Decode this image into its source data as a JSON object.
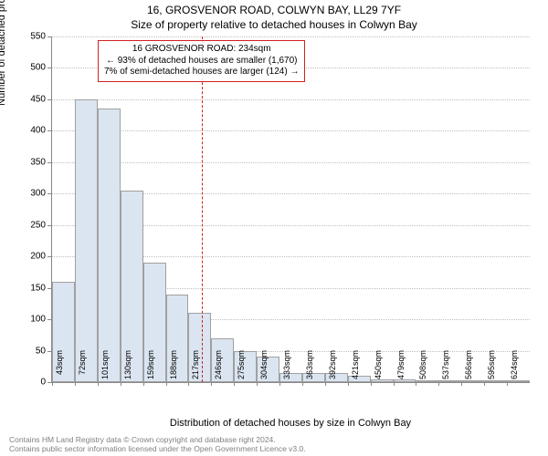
{
  "supertitle": "16, GROSVENOR ROAD, COLWYN BAY, LL29 7YF",
  "title": "Size of property relative to detached houses in Colwyn Bay",
  "chart": {
    "type": "histogram",
    "ylabel": "Number of detached properties",
    "xlabel": "Distribution of detached houses by size in Colwyn Bay",
    "ylim": [
      0,
      550
    ],
    "ytick_step": 50,
    "bar_color": "#dbe5f1",
    "bar_border_color": "#a0a0a0",
    "grid_color": "#bfbfbf",
    "background_color": "#ffffff",
    "bin_width_sqm": 29,
    "x_start_sqm": 43,
    "xtick_labels": [
      "43sqm",
      "72sqm",
      "101sqm",
      "130sqm",
      "159sqm",
      "188sqm",
      "217sqm",
      "246sqm",
      "275sqm",
      "304sqm",
      "333sqm",
      "363sqm",
      "392sqm",
      "421sqm",
      "450sqm",
      "479sqm",
      "508sqm",
      "537sqm",
      "566sqm",
      "595sqm",
      "624sqm"
    ],
    "values": [
      160,
      450,
      435,
      305,
      190,
      140,
      110,
      70,
      50,
      40,
      15,
      15,
      15,
      10,
      5,
      5,
      3,
      3,
      2,
      2,
      1
    ],
    "reference_line": {
      "value_sqm": 234,
      "color": "#d02020"
    },
    "annotation": {
      "line1": "16 GROSVENOR ROAD: 234sqm",
      "line2": "← 93% of detached houses are smaller (1,670)",
      "line3": "7% of semi-detached houses are larger (124) →",
      "border_color": "#d02020"
    },
    "title_fontsize": 12,
    "label_fontsize": 11,
    "tick_fontsize": 10
  },
  "attribution": {
    "line1": "Contains HM Land Registry data © Crown copyright and database right 2024.",
    "line2": "Contains public sector information licensed under the Open Government Licence v3.0."
  }
}
